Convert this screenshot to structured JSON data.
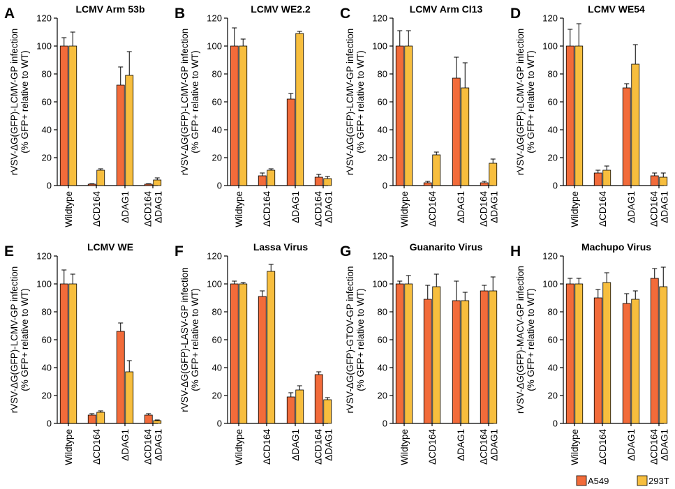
{
  "colors": {
    "A549": "#F26B3A",
    "293T": "#F7BE3E"
  },
  "legend": {
    "items": [
      "A549",
      "293T"
    ],
    "placement": "bottom-right"
  },
  "chart_data": [
    {
      "panel": "A",
      "title": "LCMV Arm 53b",
      "type": "bar",
      "ylabel": [
        "rVSV-ΔG(GFP)-LCMV-GP infection",
        "(% GFP+ relative to WT)"
      ],
      "categories": [
        [
          "Wildtype"
        ],
        [
          "ΔCD164"
        ],
        [
          "ΔDAG1"
        ],
        [
          "ΔCD164",
          "ΔDAG1"
        ]
      ],
      "ylim": [
        0,
        120
      ],
      "yticks": [
        0,
        20,
        40,
        60,
        80,
        100,
        120
      ],
      "series": [
        {
          "name": "A549",
          "values": [
            100,
            1,
            72,
            1
          ],
          "errors": [
            6,
            0.3,
            13,
            0.3
          ]
        },
        {
          "name": "293T",
          "values": [
            100,
            11,
            79,
            4
          ],
          "errors": [
            10,
            1,
            17,
            1.5
          ]
        }
      ]
    },
    {
      "panel": "B",
      "title": "LCMV WE2.2",
      "type": "bar",
      "ylabel": [
        "rVSV-ΔG(GFP)-LCMV-GP infection",
        "(% GFP+ relative to WT)"
      ],
      "categories": [
        [
          "Wildtype"
        ],
        [
          "ΔCD164"
        ],
        [
          "ΔDAG1"
        ],
        [
          "ΔCD164",
          "ΔDAG1"
        ]
      ],
      "ylim": [
        0,
        120
      ],
      "yticks": [
        0,
        20,
        40,
        60,
        80,
        100,
        120
      ],
      "series": [
        {
          "name": "A549",
          "values": [
            100,
            7,
            62,
            6
          ],
          "errors": [
            13,
            2,
            4,
            2
          ]
        },
        {
          "name": "293T",
          "values": [
            100,
            11,
            109,
            5
          ],
          "errors": [
            5,
            1,
            1.5,
            1.5
          ]
        }
      ]
    },
    {
      "panel": "C",
      "title": "LCMV Arm Cl13",
      "type": "bar",
      "ylabel": [
        "rVSV-ΔG(GFP)-LCMV-GP infection",
        "(% GFP+ relative to WT)"
      ],
      "categories": [
        [
          "Wildtype"
        ],
        [
          "ΔCD164"
        ],
        [
          "ΔDAG1"
        ],
        [
          "ΔCD164",
          "ΔDAG1"
        ]
      ],
      "ylim": [
        0,
        120
      ],
      "yticks": [
        0,
        20,
        40,
        60,
        80,
        100,
        120
      ],
      "series": [
        {
          "name": "A549",
          "values": [
            100,
            2,
            77,
            2
          ],
          "errors": [
            11,
            1,
            15,
            1
          ]
        },
        {
          "name": "293T",
          "values": [
            100,
            22,
            70,
            16
          ],
          "errors": [
            11,
            2,
            18,
            3
          ]
        }
      ]
    },
    {
      "panel": "D",
      "title": "LCMV WE54",
      "type": "bar",
      "ylabel": [
        "rVSV-ΔG(GFP)-LCMV-GP infection",
        "(% GFP+ relative to WT)"
      ],
      "categories": [
        [
          "Wildtype"
        ],
        [
          "ΔCD164"
        ],
        [
          "ΔDAG1"
        ],
        [
          "ΔCD164",
          "ΔDAG1"
        ]
      ],
      "ylim": [
        0,
        120
      ],
      "yticks": [
        0,
        20,
        40,
        60,
        80,
        100,
        120
      ],
      "series": [
        {
          "name": "A549",
          "values": [
            100,
            9,
            70,
            7
          ],
          "errors": [
            12,
            2,
            3,
            2
          ]
        },
        {
          "name": "293T",
          "values": [
            100,
            11,
            87,
            6
          ],
          "errors": [
            16,
            3,
            14,
            3
          ]
        }
      ]
    },
    {
      "panel": "E",
      "title": "LCMV WE",
      "type": "bar",
      "ylabel": [
        "rVSV-ΔG(GFP)-LCMV-GP infection",
        "(% GFP+ relative to WT)"
      ],
      "categories": [
        [
          "Wildtype"
        ],
        [
          "ΔCD164"
        ],
        [
          "ΔDAG1"
        ],
        [
          "ΔCD164",
          "ΔDAG1"
        ]
      ],
      "ylim": [
        0,
        120
      ],
      "yticks": [
        0,
        20,
        40,
        60,
        80,
        100,
        120
      ],
      "series": [
        {
          "name": "A549",
          "values": [
            100,
            6,
            66,
            6
          ],
          "errors": [
            10,
            1,
            6,
            1
          ]
        },
        {
          "name": "293T",
          "values": [
            100,
            8,
            37,
            2
          ],
          "errors": [
            7,
            1,
            8,
            0.5
          ]
        }
      ]
    },
    {
      "panel": "F",
      "title": "Lassa Virus",
      "type": "bar",
      "ylabel": [
        "rVSV-ΔG(GFP)-LASV-GP infection",
        "(% GFP+ relative to WT)"
      ],
      "categories": [
        [
          "Wildtype"
        ],
        [
          "ΔCD164"
        ],
        [
          "ΔDAG1"
        ],
        [
          "ΔCD164",
          "ΔDAG1"
        ]
      ],
      "ylim": [
        0,
        120
      ],
      "yticks": [
        0,
        20,
        40,
        60,
        80,
        100,
        120
      ],
      "series": [
        {
          "name": "A549",
          "values": [
            100,
            91,
            19,
            35
          ],
          "errors": [
            2,
            4,
            3,
            2
          ]
        },
        {
          "name": "293T",
          "values": [
            100,
            109,
            24,
            17
          ],
          "errors": [
            1,
            5,
            3,
            1.5
          ]
        }
      ]
    },
    {
      "panel": "G",
      "title": "Guanarito Virus",
      "type": "bar",
      "ylabel": [
        "rVSV-ΔG(GFP)-GTOV-GP infection",
        "(% GFP+ relative to WT)"
      ],
      "categories": [
        [
          "Wildtype"
        ],
        [
          "ΔCD164"
        ],
        [
          "ΔDAG1"
        ],
        [
          "ΔCD164",
          "ΔDAG1"
        ]
      ],
      "ylim": [
        0,
        120
      ],
      "yticks": [
        0,
        20,
        40,
        60,
        80,
        100,
        120
      ],
      "series": [
        {
          "name": "A549",
          "values": [
            100,
            89,
            88,
            95
          ],
          "errors": [
            2,
            10,
            14,
            4
          ]
        },
        {
          "name": "293T",
          "values": [
            100,
            98,
            88,
            95
          ],
          "errors": [
            6,
            9,
            6,
            10
          ]
        }
      ]
    },
    {
      "panel": "H",
      "title": "Machupo Virus",
      "type": "bar",
      "ylabel": [
        "rVSV-ΔG(GFP)-MACV-GP infection",
        "(% GFP+ relative to WT)"
      ],
      "categories": [
        [
          "Wildtype"
        ],
        [
          "ΔCD164"
        ],
        [
          "ΔDAG1"
        ],
        [
          "ΔCD164",
          "ΔDAG1"
        ]
      ],
      "ylim": [
        0,
        120
      ],
      "yticks": [
        0,
        20,
        40,
        60,
        80,
        100,
        120
      ],
      "series": [
        {
          "name": "A549",
          "values": [
            100,
            90,
            86,
            104
          ],
          "errors": [
            4,
            6,
            7,
            7
          ]
        },
        {
          "name": "293T",
          "values": [
            100,
            101,
            89,
            98
          ],
          "errors": [
            4,
            7,
            6,
            14
          ]
        }
      ]
    }
  ]
}
